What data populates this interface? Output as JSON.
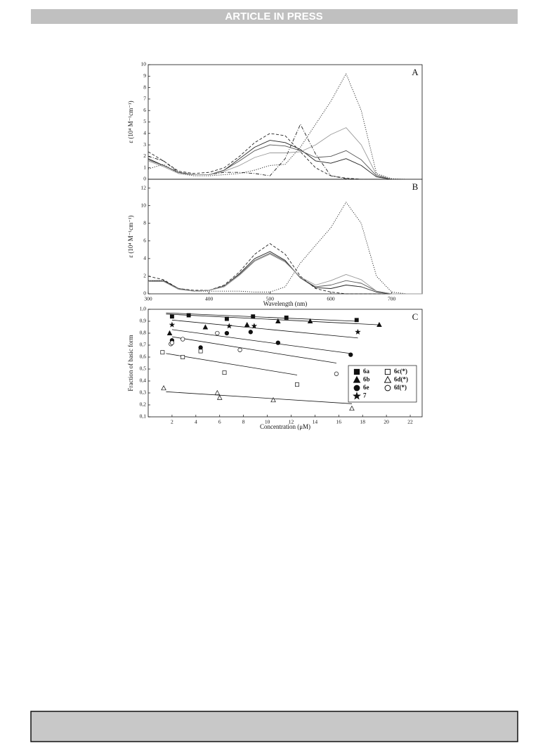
{
  "header": {
    "banner": "ARTICLE IN PRESS"
  },
  "chart_data": [
    {
      "type": "line",
      "annotation": "A",
      "y_label": "ε (10⁴ M⁻¹cm⁻¹)",
      "x": [
        300,
        325,
        350,
        375,
        400,
        425,
        450,
        475,
        500,
        525,
        550,
        575,
        600,
        625,
        650,
        675,
        700,
        725,
        750
      ],
      "xlim": [
        300,
        750
      ],
      "ylim": [
        0,
        10
      ],
      "yticks": [
        0,
        1,
        2,
        3,
        4,
        5,
        6,
        7,
        8,
        9,
        10
      ],
      "series": [
        {
          "color": "#222",
          "dash": "dotted",
          "values": [
            0.9,
            1.3,
            0.5,
            0.3,
            0.3,
            0.4,
            0.5,
            0.8,
            1.2,
            1.3,
            2.8,
            4.8,
            6.8,
            9.2,
            6.0,
            0.5,
            0.05,
            0,
            0
          ]
        },
        {
          "color": "#222",
          "dash": "dashed",
          "values": [
            2.4,
            1.6,
            0.7,
            0.5,
            0.6,
            1.0,
            2.0,
            3.2,
            4.0,
            3.8,
            2.4,
            1.0,
            0.3,
            0.1,
            0,
            0,
            0,
            0,
            0
          ]
        },
        {
          "color": "#222",
          "dash": "dashdot",
          "values": [
            2.0,
            1.6,
            0.6,
            0.4,
            0.4,
            0.6,
            0.6,
            0.5,
            0.3,
            1.8,
            4.8,
            2.2,
            0.3,
            0.05,
            0,
            0,
            0,
            0,
            0
          ]
        },
        {
          "color": "#222",
          "dash": "solid",
          "values": [
            1.8,
            1.2,
            0.6,
            0.4,
            0.4,
            0.8,
            1.8,
            2.8,
            3.4,
            3.2,
            2.6,
            1.6,
            1.4,
            1.8,
            1.2,
            0.2,
            0,
            0,
            0
          ]
        },
        {
          "color": "#555",
          "dash": "solid",
          "values": [
            1.7,
            1.2,
            0.6,
            0.4,
            0.4,
            0.8,
            1.6,
            2.5,
            3.0,
            2.9,
            2.5,
            1.9,
            2.0,
            2.5,
            1.7,
            0.3,
            0,
            0,
            0
          ]
        },
        {
          "color": "#999",
          "dash": "solid",
          "values": [
            1.6,
            1.1,
            0.5,
            0.4,
            0.4,
            0.7,
            1.2,
            1.9,
            2.3,
            2.3,
            2.4,
            3.0,
            3.9,
            4.5,
            3.0,
            0.4,
            0,
            0,
            0
          ]
        }
      ]
    },
    {
      "type": "line",
      "annotation": "B",
      "y_label": "ε (10⁴ M⁻¹cm⁻¹)",
      "x_label": "Wavelength (nm)",
      "x": [
        300,
        325,
        350,
        375,
        400,
        425,
        450,
        475,
        500,
        525,
        550,
        575,
        600,
        625,
        650,
        675,
        700,
        725,
        750
      ],
      "xlim": [
        300,
        750
      ],
      "xticks": [
        300,
        400,
        500,
        600,
        700
      ],
      "ylim": [
        0,
        13
      ],
      "yticks": [
        0,
        2,
        4,
        6,
        8,
        10,
        12
      ],
      "series": [
        {
          "color": "#222",
          "dash": "dotted",
          "values": [
            1.4,
            1.5,
            0.6,
            0.3,
            0.3,
            0.3,
            0.3,
            0.2,
            0.2,
            0.8,
            3.5,
            5.5,
            7.5,
            10.4,
            8.0,
            2.0,
            0.2,
            0,
            0
          ]
        },
        {
          "color": "#222",
          "dash": "dashed",
          "values": [
            2.0,
            1.6,
            0.6,
            0.4,
            0.4,
            1.0,
            2.5,
            4.5,
            5.7,
            4.5,
            2.0,
            0.6,
            0.2,
            0,
            0,
            0,
            0,
            0,
            0
          ]
        },
        {
          "color": "#222",
          "dash": "solid",
          "values": [
            1.5,
            1.5,
            0.6,
            0.3,
            0.4,
            0.9,
            2.3,
            4.0,
            4.8,
            3.8,
            1.8,
            0.7,
            0.6,
            1.0,
            0.8,
            0.2,
            0,
            0,
            0
          ]
        },
        {
          "color": "#555",
          "dash": "solid",
          "values": [
            1.4,
            1.4,
            0.6,
            0.3,
            0.4,
            0.9,
            2.2,
            3.8,
            4.6,
            3.7,
            1.8,
            0.8,
            1.0,
            1.5,
            1.2,
            0.3,
            0,
            0,
            0
          ]
        },
        {
          "color": "#999",
          "dash": "solid",
          "values": [
            1.4,
            1.4,
            0.5,
            0.3,
            0.4,
            0.8,
            2.1,
            3.7,
            4.5,
            3.6,
            1.9,
            1.0,
            1.5,
            2.2,
            1.6,
            0.3,
            0,
            0,
            0
          ]
        }
      ]
    },
    {
      "type": "scatter",
      "annotation": "C",
      "y_label": "Fraction of basic form",
      "x_label": "Concentration (μM)",
      "xlim": [
        0,
        23
      ],
      "xticks": [
        2,
        4,
        6,
        8,
        10,
        12,
        14,
        16,
        18,
        20,
        22
      ],
      "ylim": [
        0.1,
        1.0
      ],
      "yticks": [
        {
          "value": 0.1,
          "label": "0,1"
        },
        {
          "value": 0.2,
          "label": "0,2"
        },
        {
          "value": 0.3,
          "label": "0,3"
        },
        {
          "value": 0.4,
          "label": "0,4"
        },
        {
          "value": 0.5,
          "label": "0,5"
        },
        {
          "value": 0.6,
          "label": "0,6"
        },
        {
          "value": 0.7,
          "label": "0,7"
        },
        {
          "value": 0.8,
          "label": "0,8"
        },
        {
          "value": 0.9,
          "label": "0,9"
        },
        {
          "value": 1.0,
          "label": "1,0"
        }
      ],
      "legend": "lower right",
      "series": [
        {
          "name": "6a",
          "marker": "square",
          "filled": true,
          "x": [
            2,
            3.4,
            6.6,
            8.8,
            11.6,
            17.5
          ],
          "values": [
            0.94,
            0.95,
            0.92,
            0.94,
            0.93,
            0.91
          ]
        },
        {
          "name": "6b",
          "marker": "triangle",
          "filled": true,
          "x": [
            1.8,
            4.8,
            8.3,
            10.9,
            13.6,
            19.4
          ],
          "values": [
            0.8,
            0.85,
            0.87,
            0.9,
            0.9,
            0.87
          ]
        },
        {
          "name": "6e",
          "marker": "circle",
          "filled": true,
          "x": [
            2,
            4.4,
            6.6,
            8.6,
            10.9,
            17.0
          ],
          "values": [
            0.74,
            0.68,
            0.8,
            0.81,
            0.72,
            0.62
          ]
        },
        {
          "name": "7",
          "marker": "star",
          "filled": true,
          "x": [
            2,
            6.8,
            8.9,
            17.6
          ],
          "values": [
            0.87,
            0.86,
            0.86,
            0.81
          ]
        },
        {
          "name": "6c(*)",
          "marker": "square",
          "filled": false,
          "x": [
            1.2,
            2.9,
            4.4,
            6.4,
            12.5
          ],
          "values": [
            0.64,
            0.6,
            0.65,
            0.47,
            0.37
          ]
        },
        {
          "name": "6d(*)",
          "marker": "triangle",
          "filled": false,
          "x": [
            1.3,
            5.8,
            6.0,
            10.5,
            17.1
          ],
          "values": [
            0.34,
            0.3,
            0.26,
            0.24,
            0.17
          ]
        },
        {
          "name": "6f(*)",
          "marker": "circle",
          "filled": false,
          "x": [
            1.9,
            2.0,
            2.9,
            5.8,
            7.7,
            15.8
          ],
          "values": [
            0.71,
            0.72,
            0.75,
            0.8,
            0.66,
            0.46
          ]
        }
      ],
      "fits": [
        {
          "x": [
            1.5,
            17.5
          ],
          "values": [
            0.97,
            0.9
          ]
        },
        {
          "x": [
            1.5,
            19.4
          ],
          "values": [
            0.96,
            0.87
          ]
        },
        {
          "x": [
            2,
            17.6
          ],
          "values": [
            0.91,
            0.76
          ]
        },
        {
          "x": [
            2,
            17.0
          ],
          "values": [
            0.83,
            0.63
          ]
        },
        {
          "x": [
            2,
            15.8
          ],
          "values": [
            0.77,
            0.55
          ]
        },
        {
          "x": [
            1.5,
            12.5
          ],
          "values": [
            0.63,
            0.45
          ]
        },
        {
          "x": [
            1.5,
            17.1
          ],
          "values": [
            0.31,
            0.21
          ]
        }
      ]
    }
  ]
}
